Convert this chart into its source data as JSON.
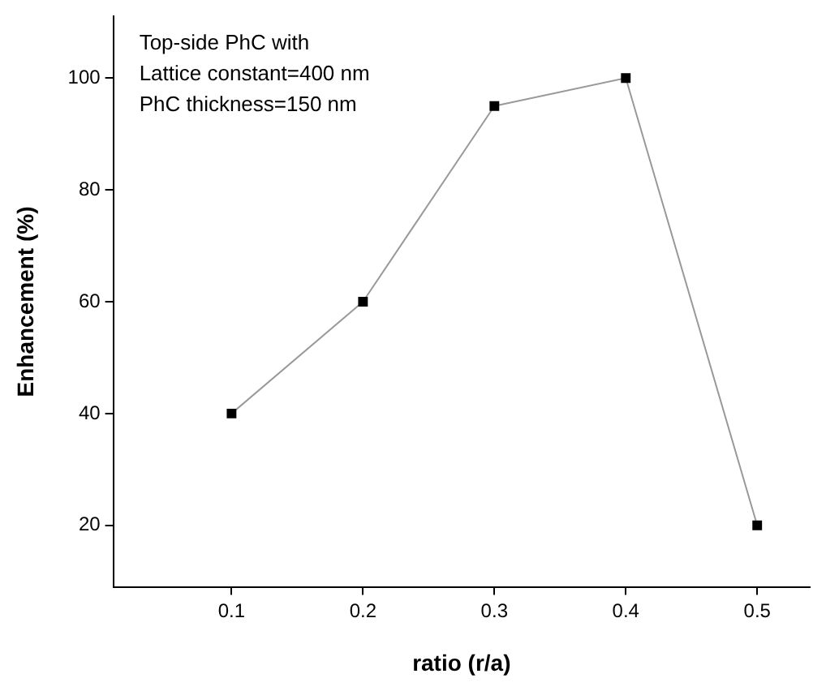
{
  "chart_data": {
    "type": "line",
    "xlabel": "ratio (r/a)",
    "ylabel": "Enhancement (%)",
    "annotations": [
      "Top-side PhC with",
      "Lattice constant=400 nm",
      "PhC thickness=150 nm"
    ],
    "x": [
      0.1,
      0.2,
      0.3,
      0.4,
      0.5
    ],
    "series": [
      {
        "color": "#000000",
        "values": [
          40,
          60,
          95,
          100,
          20
        ]
      }
    ],
    "xlim": [
      0.01,
      0.54
    ],
    "xticks": [
      0.1,
      0.2,
      0.3,
      0.4,
      0.5
    ],
    "ylim": [
      9,
      111
    ],
    "yticks": [
      20,
      40,
      60,
      80,
      100
    ],
    "grid": false,
    "legend": false,
    "marker": "square",
    "line_style": "solid"
  }
}
